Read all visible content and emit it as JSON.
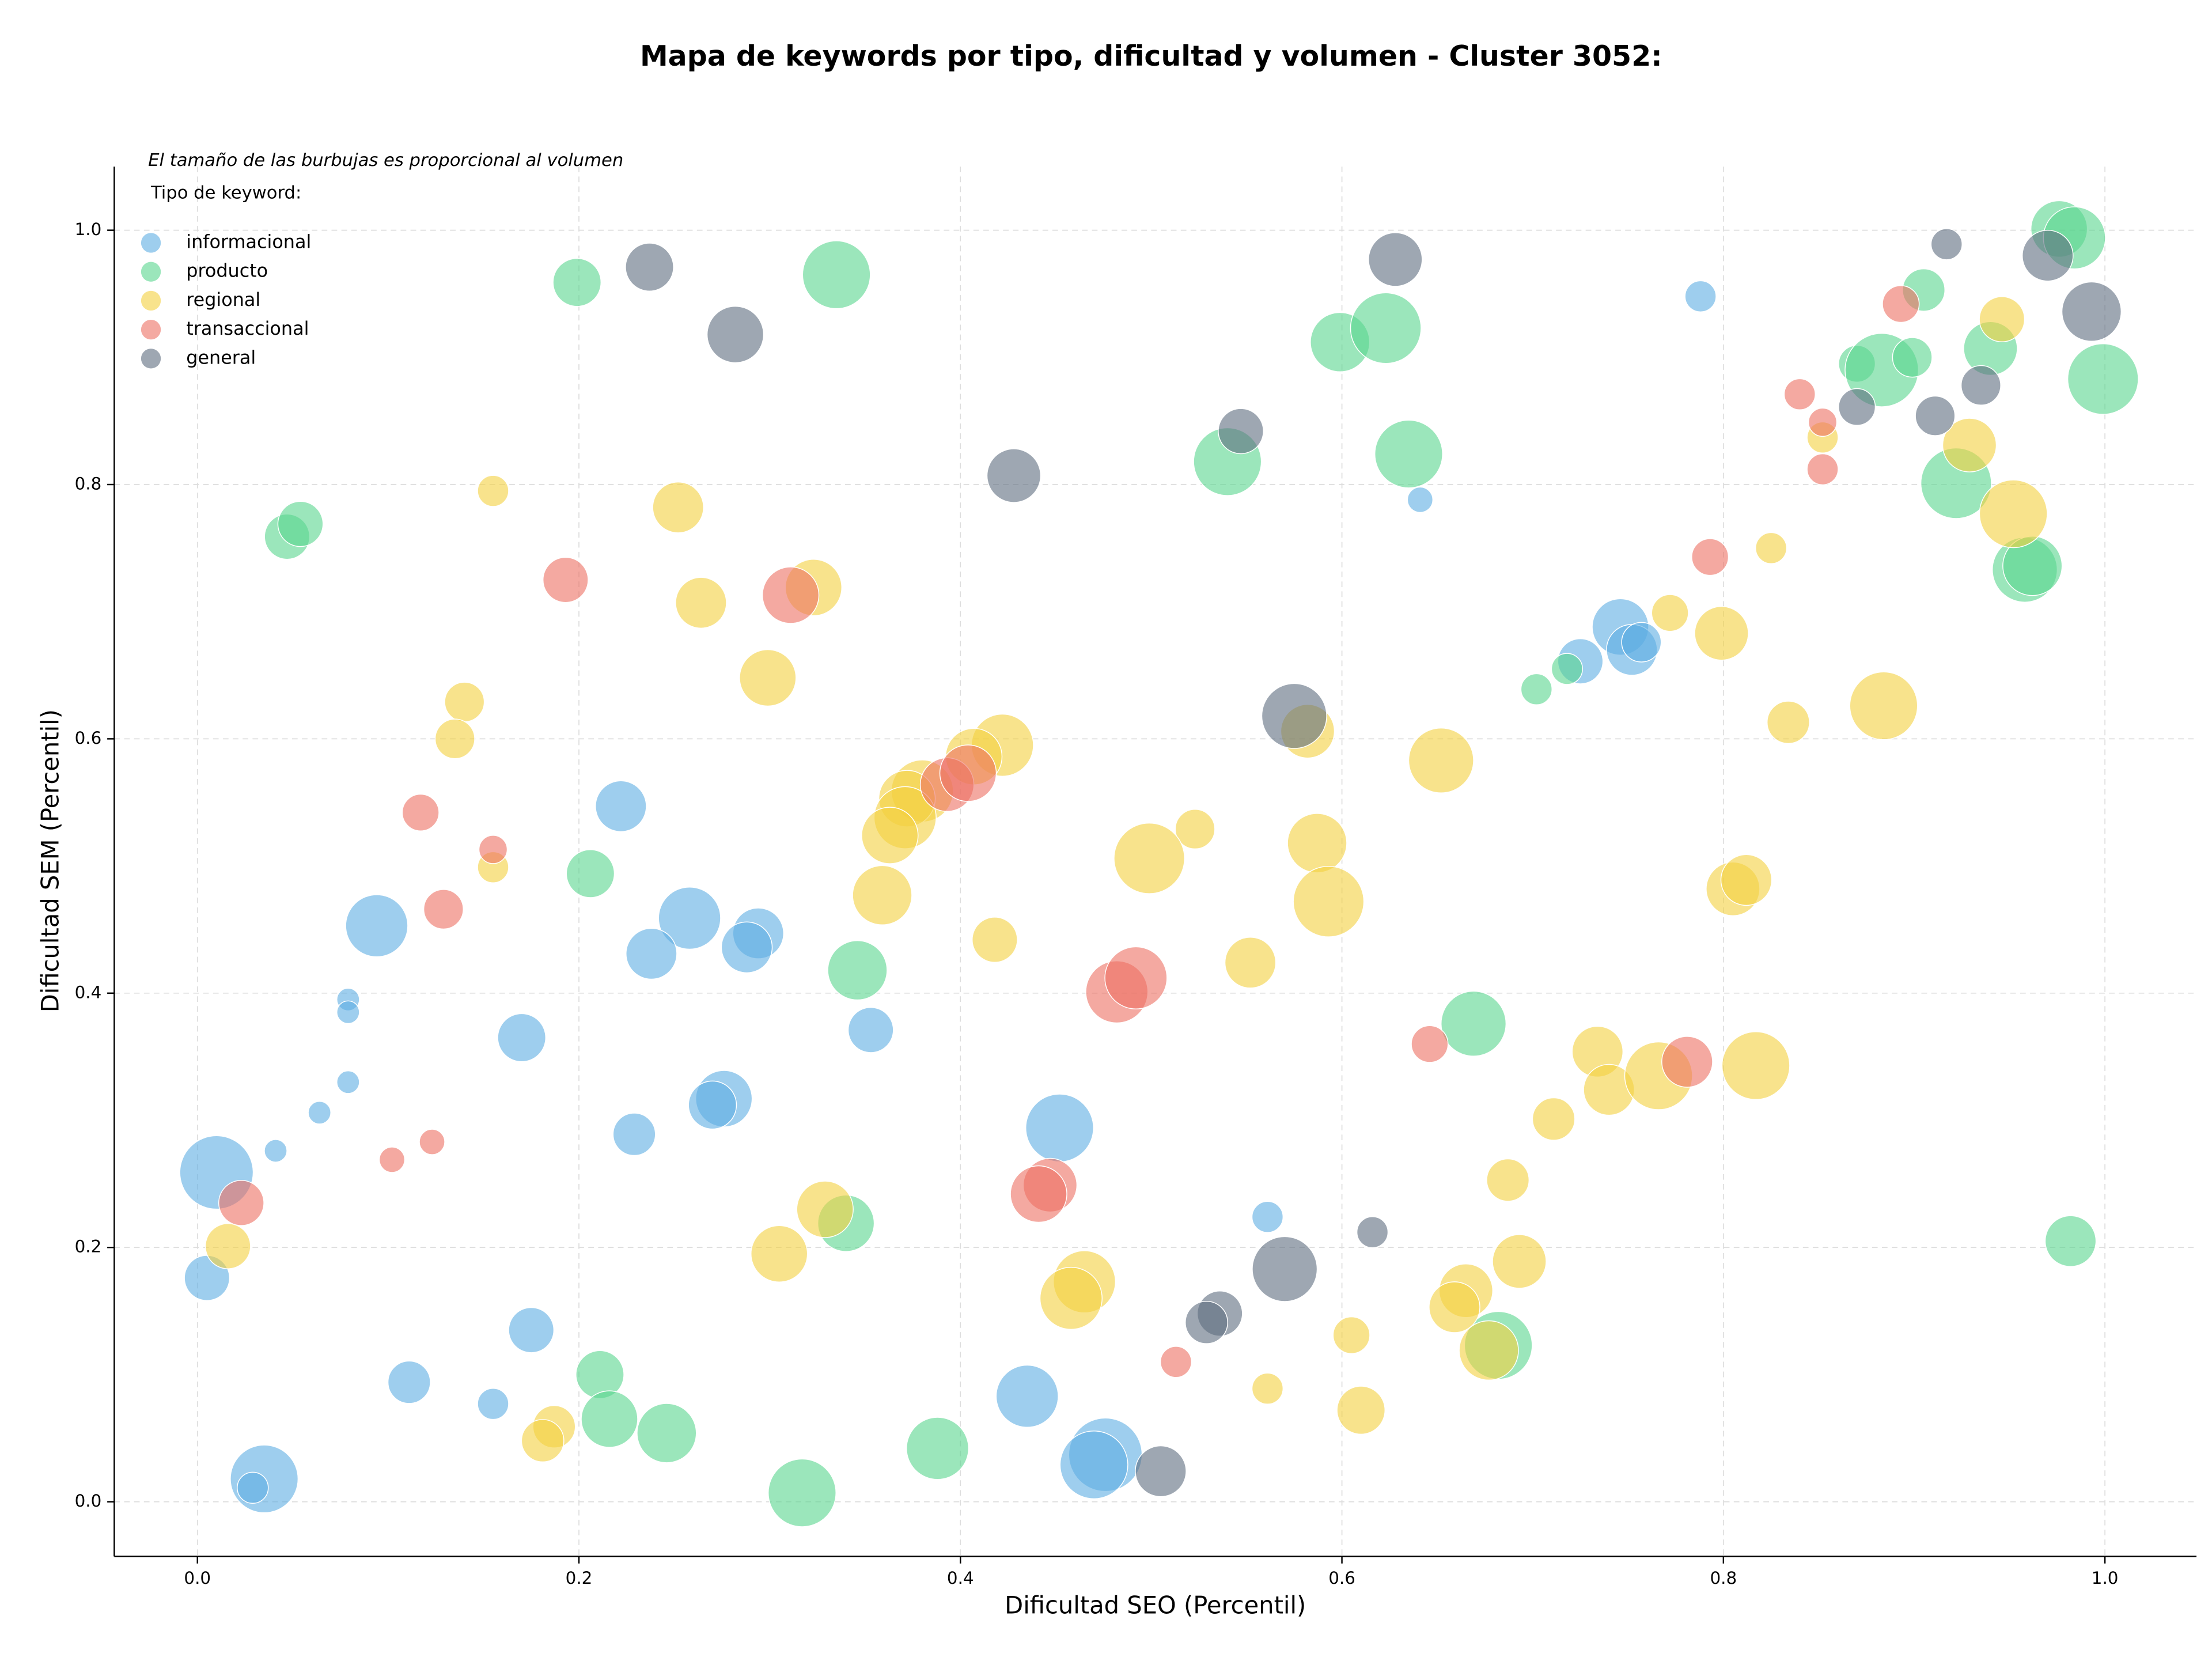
{
  "chart_data": {
    "type": "scatter",
    "title": "Mapa de keywords por tipo, dificultad y volumen - Cluster 3052:",
    "annotation": "El tamaño de las burbujas es proporcional al volumen",
    "legend_title": "Tipo de keyword:",
    "legend_position": "upper left",
    "x_label": "Dificultad SEO (Percentil)",
    "y_label": "Dificultad SEM (Percentil)",
    "xlim": [
      -0.0436,
      1.048
    ],
    "ylim": [
      -0.043,
      1.05
    ],
    "xticks": [
      {
        "value": 0,
        "label": "0.0"
      },
      0.2,
      0.4,
      0.6,
      0.8,
      {
        "value": 1,
        "label": "1.0"
      }
    ],
    "yticks": [
      {
        "value": 0,
        "label": "0.0"
      },
      0.2,
      0.4,
      0.6,
      0.8,
      {
        "value": 1,
        "label": "1.0"
      }
    ],
    "grid": true,
    "alpha": 0.6,
    "series": [
      {
        "name": "informacional",
        "color": "#5DADE2",
        "x": [
          0.788,
          0.641,
          0.746,
          0.752,
          0.725,
          0.757,
          0.222,
          0.094,
          0.258,
          0.294,
          0.288,
          0.238,
          0.079,
          0.079,
          0.17,
          0.353,
          0.079,
          0.064,
          0.041,
          0.276,
          0.27,
          0.229,
          0.452,
          0.01,
          0.005,
          0.175,
          0.561,
          0.111,
          0.155,
          0.435,
          0.476,
          0.47,
          0.035,
          0.029
        ],
        "values": [
          0.948,
          0.788,
          0.688,
          0.67,
          0.661,
          0.676,
          0.547,
          0.453,
          0.459,
          0.447,
          0.436,
          0.431,
          0.395,
          0.385,
          0.365,
          0.371,
          0.33,
          0.306,
          0.276,
          0.317,
          0.312,
          0.289,
          0.294,
          0.259,
          0.176,
          0.135,
          0.224,
          0.094,
          0.077,
          0.083,
          0.037,
          0.029,
          0.018,
          0.011
        ],
        "sizes": [
          121,
          81,
          400,
          324,
          256,
          196,
          324,
          484,
          484,
          324,
          324,
          324,
          64,
          64,
          289,
          256,
          64,
          64,
          64,
          400,
          289,
          225,
          576,
          676,
          256,
          256,
          121,
          225,
          121,
          484,
          676,
          576,
          576,
          121
        ]
      },
      {
        "name": "producto",
        "color": "#58D68D",
        "x": [
          0.976,
          0.984,
          0.199,
          0.335,
          0.599,
          0.623,
          0.905,
          0.87,
          0.883,
          0.899,
          0.94,
          0.999,
          0.54,
          0.635,
          0.922,
          0.958,
          0.962,
          0.047,
          0.054,
          0.702,
          0.718,
          0.206,
          0.346,
          0.669,
          0.34,
          0.982,
          0.211,
          0.216,
          0.246,
          0.388,
          0.317,
          0.682
        ],
        "values": [
          1.001,
          0.994,
          0.959,
          0.965,
          0.912,
          0.923,
          0.953,
          0.895,
          0.89,
          0.9,
          0.907,
          0.883,
          0.818,
          0.824,
          0.801,
          0.733,
          0.736,
          0.759,
          0.769,
          0.639,
          0.655,
          0.494,
          0.418,
          0.376,
          0.219,
          0.205,
          0.1,
          0.065,
          0.054,
          0.042,
          0.007,
          0.123
        ],
        "sizes": [
          400,
          484,
          289,
          576,
          441,
          625,
          225,
          169,
          676,
          196,
          361,
          625,
          576,
          576,
          625,
          529,
          441,
          256,
          256,
          121,
          121,
          289,
          441,
          529,
          400,
          324,
          289,
          400,
          441,
          484,
          576,
          576
        ]
      },
      {
        "name": "regional",
        "color": "#F4D03F",
        "x": [
          0.946,
          0.929,
          0.852,
          0.952,
          0.825,
          0.772,
          0.799,
          0.834,
          0.884,
          0.155,
          0.252,
          0.323,
          0.264,
          0.299,
          0.14,
          0.135,
          0.422,
          0.407,
          0.38,
          0.372,
          0.371,
          0.363,
          0.359,
          0.155,
          0.523,
          0.499,
          0.582,
          0.652,
          0.587,
          0.593,
          0.805,
          0.812,
          0.418,
          0.552,
          0.734,
          0.74,
          0.766,
          0.817,
          0.711,
          0.687,
          0.693,
          0.329,
          0.305,
          0.465,
          0.458,
          0.665,
          0.659,
          0.677,
          0.605,
          0.561,
          0.61,
          0.016,
          0.187,
          0.181
        ],
        "values": [
          0.93,
          0.831,
          0.837,
          0.777,
          0.75,
          0.699,
          0.683,
          0.613,
          0.626,
          0.795,
          0.782,
          0.719,
          0.707,
          0.648,
          0.629,
          0.6,
          0.595,
          0.586,
          0.559,
          0.553,
          0.538,
          0.524,
          0.477,
          0.499,
          0.529,
          0.506,
          0.606,
          0.583,
          0.518,
          0.472,
          0.482,
          0.489,
          0.442,
          0.424,
          0.354,
          0.324,
          0.335,
          0.343,
          0.301,
          0.253,
          0.189,
          0.23,
          0.195,
          0.173,
          0.16,
          0.166,
          0.153,
          0.119,
          0.131,
          0.089,
          0.072,
          0.201,
          0.059,
          0.048
        ],
        "sizes": [
          256,
          361,
          121,
          576,
          121,
          169,
          361,
          225,
          576,
          121,
          324,
          400,
          324,
          400,
          196,
          196,
          484,
          400,
          484,
          400,
          484,
          400,
          441,
          121,
          196,
          625,
          361,
          529,
          441,
          625,
          361,
          324,
          256,
          324,
          324,
          324,
          576,
          576,
          225,
          225,
          361,
          400,
          400,
          484,
          484,
          361,
          324,
          441,
          169,
          121,
          289,
          256,
          225,
          225
        ]
      },
      {
        "name": "transaccional",
        "color": "#EC7063",
        "x": [
          0.893,
          0.84,
          0.852,
          0.852,
          0.793,
          0.193,
          0.311,
          0.117,
          0.155,
          0.129,
          0.393,
          0.404,
          0.482,
          0.492,
          0.646,
          0.781,
          0.123,
          0.102,
          0.023,
          0.447,
          0.441,
          0.513
        ],
        "values": [
          0.942,
          0.871,
          0.849,
          0.812,
          0.743,
          0.725,
          0.713,
          0.542,
          0.513,
          0.466,
          0.564,
          0.573,
          0.401,
          0.412,
          0.36,
          0.346,
          0.283,
          0.269,
          0.235,
          0.249,
          0.242,
          0.11
        ],
        "sizes": [
          169,
          121,
          100,
          121,
          169,
          256,
          400,
          169,
          100,
          196,
          361,
          400,
          484,
          484,
          169,
          324,
          81,
          81,
          256,
          361,
          400,
          121
        ]
      },
      {
        "name": "general",
        "color": "#5D6D7E",
        "x": [
          0.237,
          0.282,
          0.628,
          0.917,
          0.97,
          0.993,
          0.935,
          0.911,
          0.87,
          0.547,
          0.428,
          0.575,
          0.616,
          0.57,
          0.536,
          0.529,
          0.505
        ],
        "values": [
          0.971,
          0.918,
          0.977,
          0.989,
          0.98,
          0.936,
          0.878,
          0.854,
          0.861,
          0.842,
          0.807,
          0.618,
          0.212,
          0.183,
          0.148,
          0.141,
          0.024
        ],
        "sizes": [
          289,
          400,
          361,
          121,
          324,
          441,
          196,
          196,
          169,
          256,
          361,
          529,
          121,
          529,
          256,
          225,
          324
        ]
      }
    ]
  }
}
